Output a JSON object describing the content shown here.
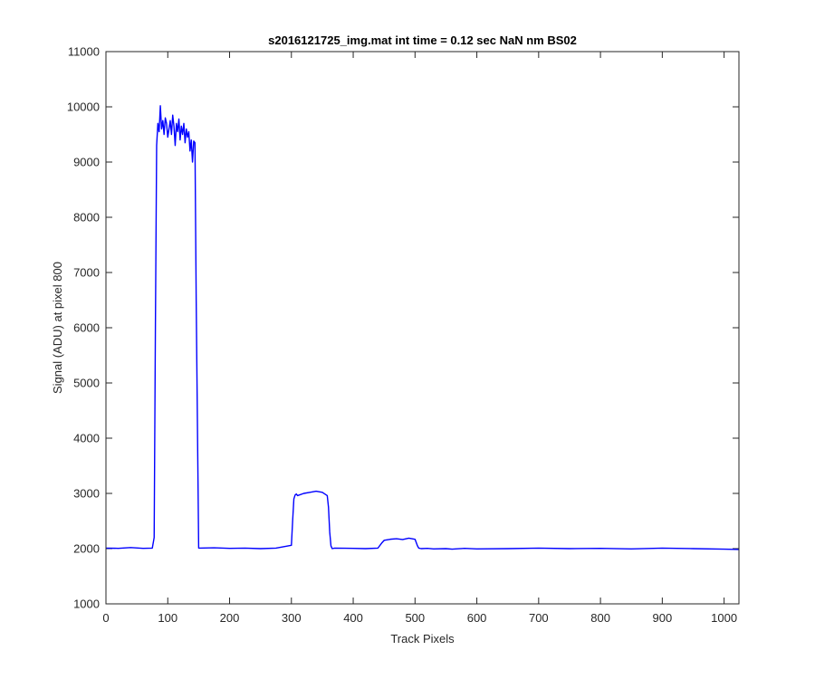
{
  "chart_data": {
    "type": "line",
    "title": "s2016121725_img.mat int time = 0.12 sec  NaN nm BS02",
    "xlabel": "Track Pixels",
    "ylabel": "Signal (ADU) at pixel 800",
    "xlim": [
      0,
      1024
    ],
    "ylim": [
      1000,
      11000
    ],
    "xticks": [
      0,
      100,
      200,
      300,
      400,
      500,
      600,
      700,
      800,
      900,
      1000
    ],
    "yticks": [
      1000,
      2000,
      3000,
      4000,
      5000,
      6000,
      7000,
      8000,
      9000,
      10000,
      11000
    ],
    "grid": false,
    "series": [
      {
        "color": "#0000ff",
        "x": [
          0,
          20,
          40,
          60,
          75,
          78,
          80,
          82,
          84,
          86,
          88,
          90,
          92,
          94,
          96,
          98,
          100,
          102,
          104,
          106,
          108,
          110,
          112,
          114,
          116,
          118,
          120,
          122,
          124,
          126,
          128,
          130,
          132,
          134,
          136,
          138,
          140,
          142,
          144,
          146,
          150,
          175,
          200,
          225,
          250,
          275,
          300,
          302,
          304,
          306,
          308,
          310,
          320,
          330,
          340,
          350,
          358,
          360,
          362,
          364,
          366,
          370,
          400,
          420,
          440,
          446,
          450,
          460,
          470,
          480,
          490,
          500,
          504,
          506,
          510,
          520,
          530,
          550,
          560,
          580,
          600,
          650,
          700,
          750,
          800,
          850,
          900,
          950,
          1000,
          1024
        ],
        "y": [
          2010,
          2005,
          2020,
          2005,
          2010,
          2200,
          6000,
          9300,
          9700,
          9550,
          10020,
          9600,
          9750,
          9500,
          9800,
          9700,
          9450,
          9600,
          9750,
          9500,
          9850,
          9650,
          9300,
          9700,
          9550,
          9780,
          9400,
          9650,
          9500,
          9700,
          9350,
          9600,
          9450,
          9550,
          9200,
          9400,
          9000,
          9380,
          9350,
          6500,
          2010,
          2015,
          2005,
          2010,
          2000,
          2010,
          2060,
          2500,
          2900,
          2970,
          2990,
          2960,
          3000,
          3020,
          3040,
          3020,
          2960,
          2750,
          2300,
          2050,
          2000,
          2010,
          2005,
          2000,
          2010,
          2100,
          2150,
          2170,
          2180,
          2165,
          2190,
          2170,
          2050,
          2010,
          2000,
          2005,
          1995,
          2000,
          1990,
          2005,
          1995,
          2000,
          2010,
          2000,
          2005,
          1995,
          2010,
          2000,
          1990,
          1985
        ]
      }
    ]
  }
}
